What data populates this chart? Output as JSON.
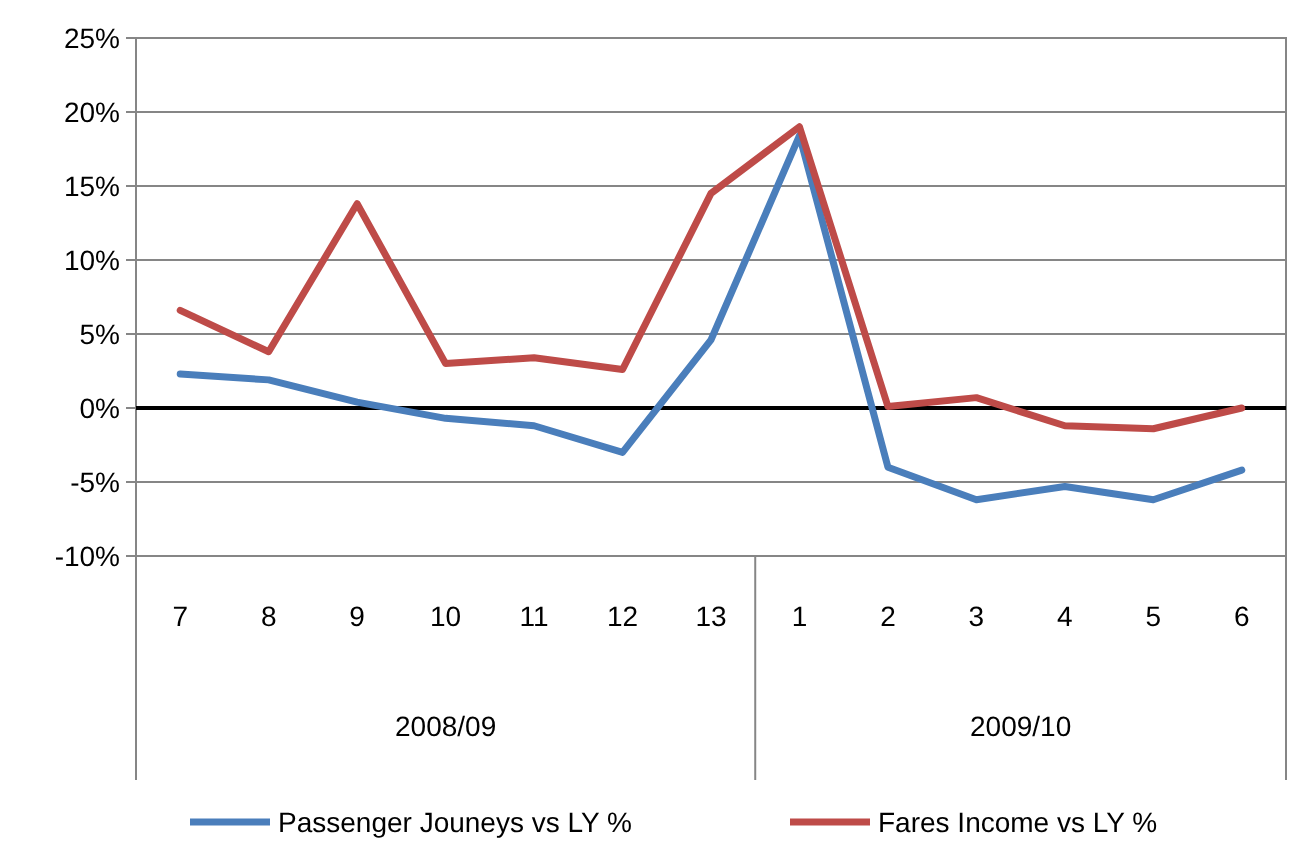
{
  "chart_data": {
    "type": "line",
    "categories": [
      "7",
      "8",
      "9",
      "10",
      "11",
      "12",
      "13",
      "1",
      "2",
      "3",
      "4",
      "5",
      "6"
    ],
    "series": [
      {
        "name": "Passenger Jouneys vs LY %",
        "color": "#4a7ebb",
        "values": [
          2.3,
          1.9,
          0.4,
          -0.7,
          -1.2,
          -3.0,
          4.6,
          18.4,
          -4.0,
          -6.2,
          -5.3,
          -6.2,
          -4.2
        ]
      },
      {
        "name": "Fares Income vs LY %",
        "color": "#be4b48",
        "values": [
          6.6,
          3.8,
          13.8,
          3.0,
          3.4,
          2.6,
          14.5,
          19.0,
          0.1,
          0.7,
          -1.2,
          -1.4,
          0.0
        ]
      }
    ],
    "ylim": [
      -10,
      25
    ],
    "yticks": [
      {
        "value": -10,
        "label": "-10%"
      },
      {
        "value": -5,
        "label": "-5%"
      },
      {
        "value": 0,
        "label": "0%"
      },
      {
        "value": 5,
        "label": "5%"
      },
      {
        "value": 10,
        "label": "10%"
      },
      {
        "value": 15,
        "label": "15%"
      },
      {
        "value": 20,
        "label": "20%"
      },
      {
        "value": 25,
        "label": "25%"
      }
    ],
    "grid": "y",
    "legend": "bottom",
    "marker": "none",
    "line_style": "solid",
    "annotations": [
      "2008/09",
      "2009/10"
    ]
  }
}
